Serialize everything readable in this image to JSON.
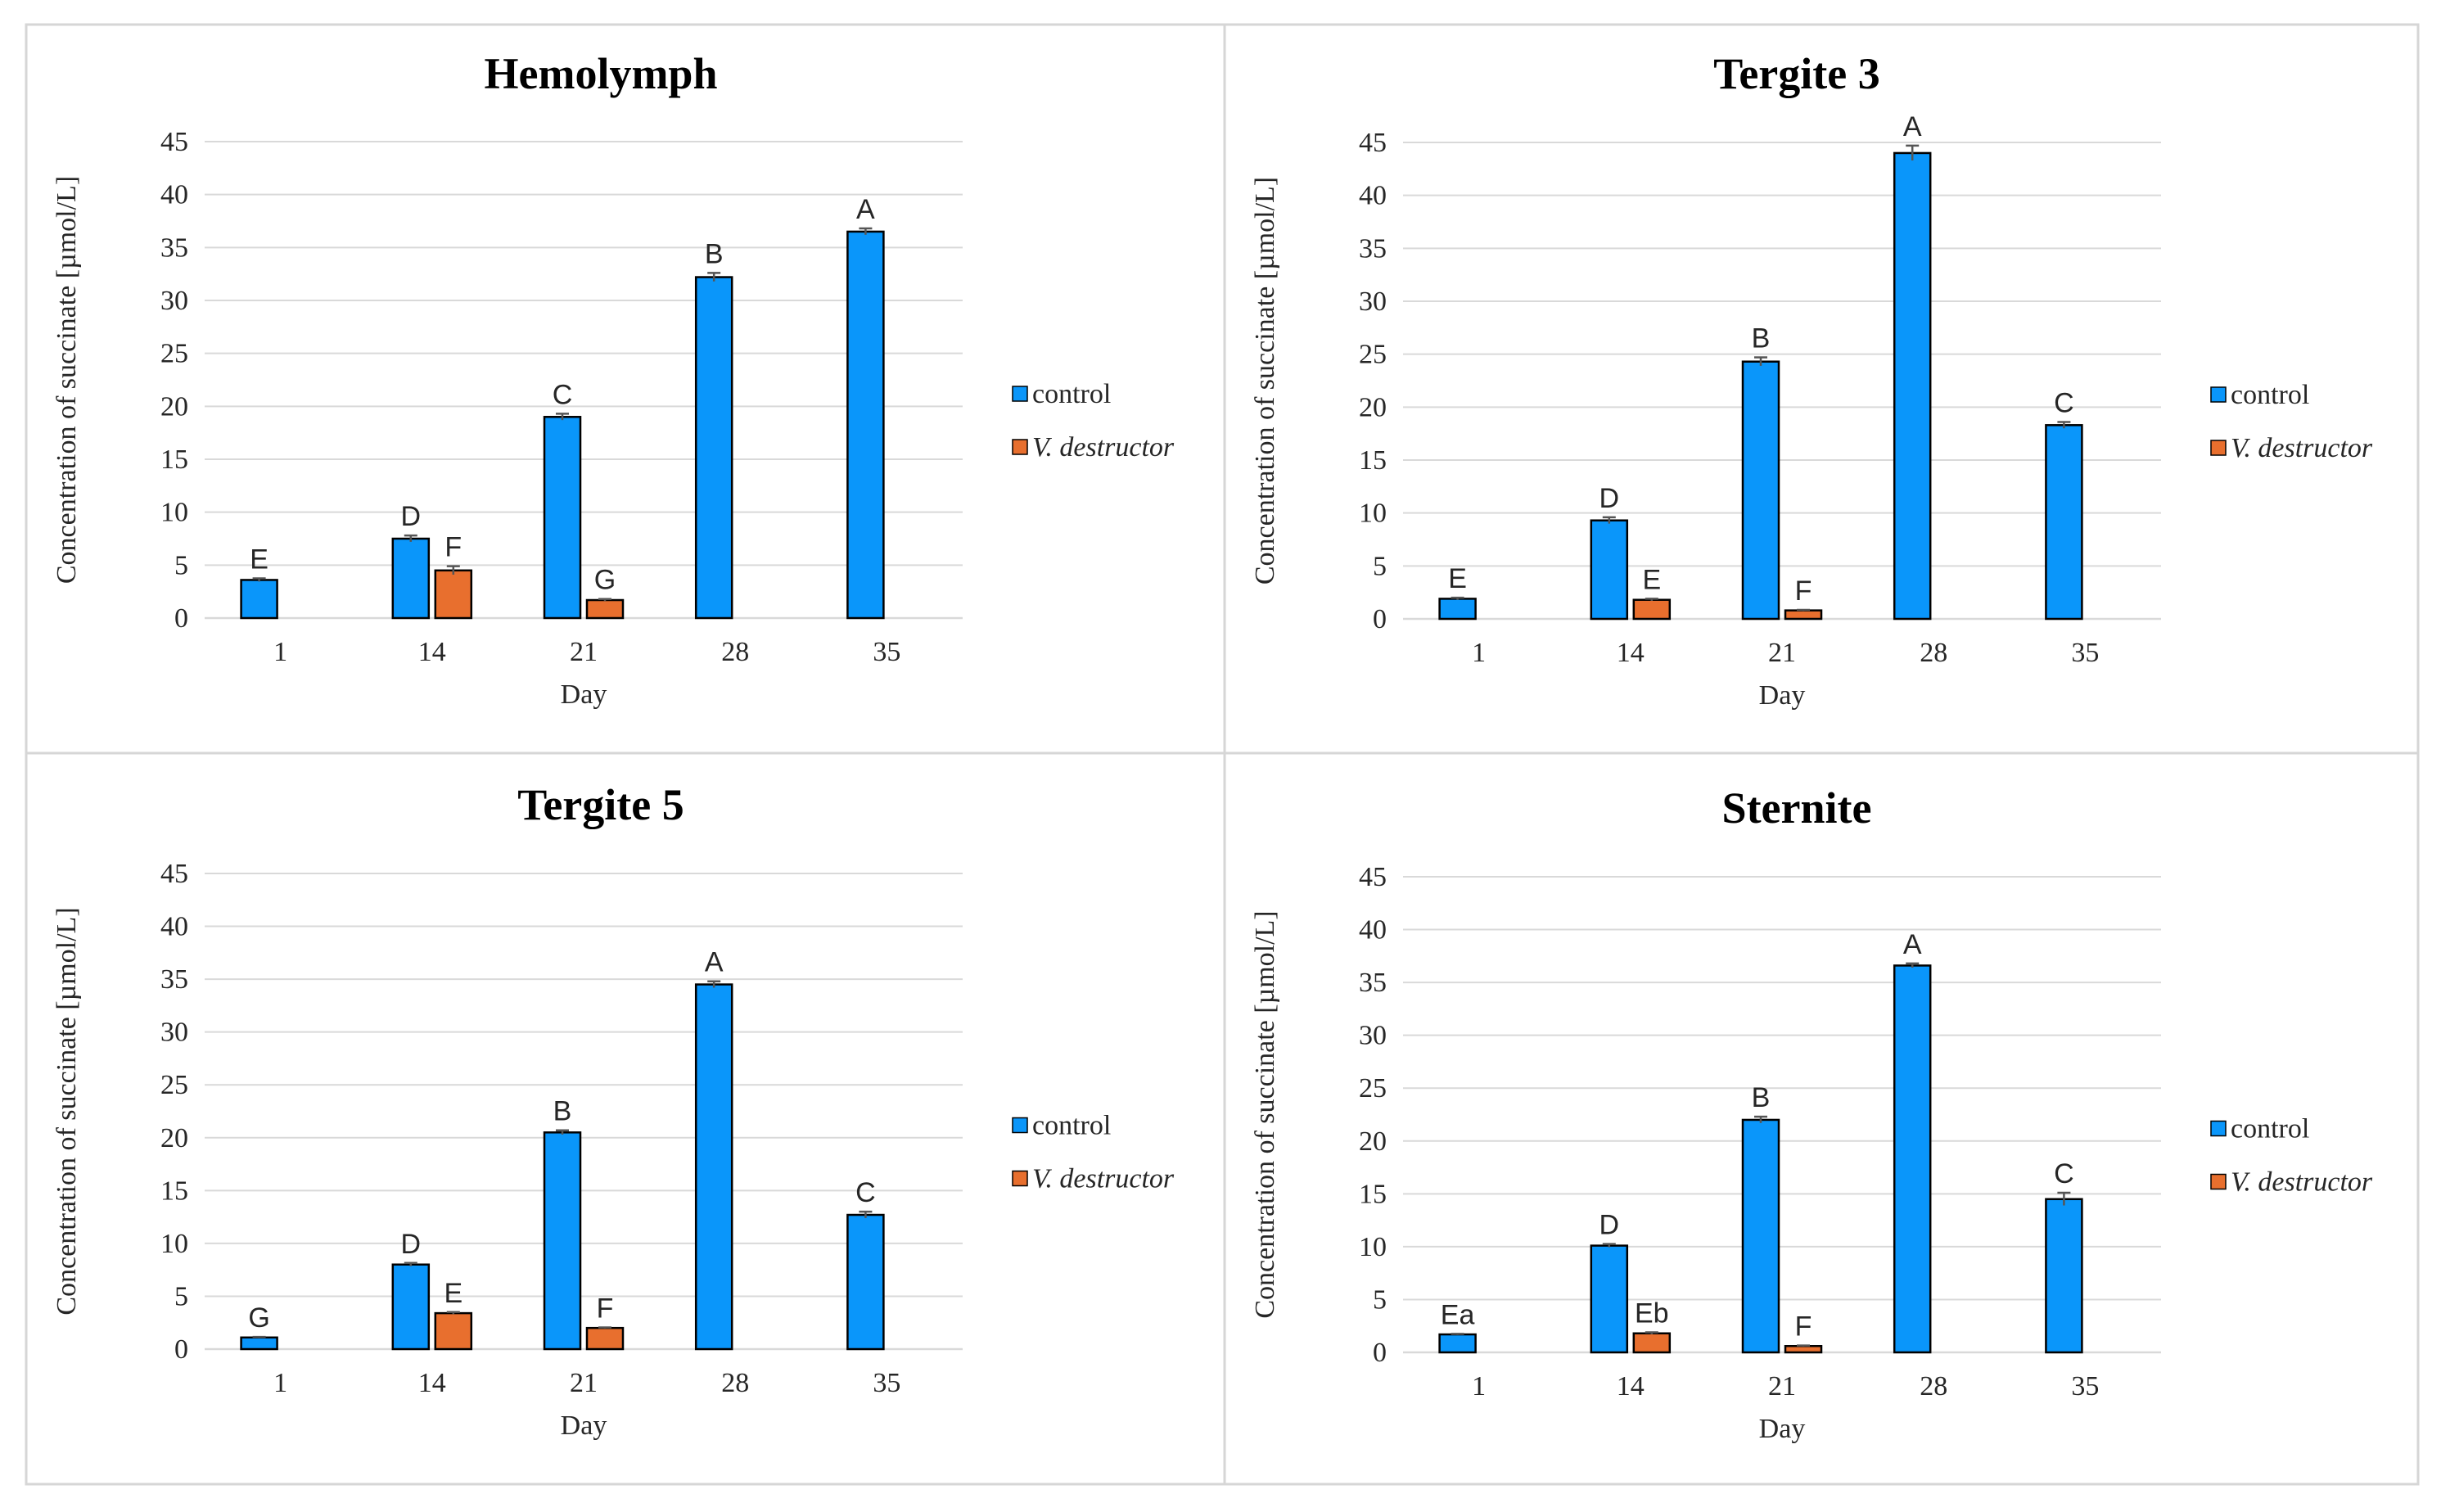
{
  "colors": {
    "control": "#0a96fa",
    "v_destructor": "#e86f2e"
  },
  "chart_data": [
    {
      "type": "bar",
      "title": "Hemolymph",
      "xlabel": "Day",
      "ylabel": "Concentration of  succinate [µmol/L]",
      "ylim": [
        0,
        45
      ],
      "yticks": [
        "0",
        "5",
        "10",
        "15",
        "20",
        "25",
        "30",
        "35",
        "40",
        "45"
      ],
      "categories": [
        "1",
        "14",
        "21",
        "28",
        "35"
      ],
      "legend": [
        "control",
        "V. destructor"
      ],
      "series": [
        {
          "name": "control",
          "values": [
            3.6,
            7.5,
            19.0,
            32.2,
            36.5
          ],
          "errors": [
            0.15,
            0.3,
            0.3,
            0.4,
            0.3
          ],
          "labels": [
            "E",
            "D",
            "C",
            "B",
            "A"
          ]
        },
        {
          "name": "V. destructor",
          "values": [
            null,
            4.5,
            1.7,
            null,
            null
          ],
          "errors": [
            null,
            0.4,
            0.1,
            null,
            null
          ],
          "labels": [
            null,
            "F",
            "G",
            null,
            null
          ]
        }
      ]
    },
    {
      "type": "bar",
      "title": "Tergite 3",
      "xlabel": "Day",
      "ylabel": "Concentration of  succinate [µmol/L]",
      "ylim": [
        0,
        45
      ],
      "yticks": [
        "0",
        "5",
        "10",
        "15",
        "20",
        "25",
        "30",
        "35",
        "40",
        "45"
      ],
      "categories": [
        "1",
        "14",
        "21",
        "28",
        "35"
      ],
      "legend": [
        "control",
        "V. destructor"
      ],
      "series": [
        {
          "name": "control",
          "values": [
            1.9,
            9.3,
            24.3,
            44.0,
            18.3
          ],
          "errors": [
            0.1,
            0.3,
            0.4,
            0.7,
            0.3
          ],
          "labels": [
            "E",
            "D",
            "B",
            "A",
            "C"
          ]
        },
        {
          "name": "V. destructor",
          "values": [
            null,
            1.8,
            0.8,
            null,
            null
          ],
          "errors": [
            null,
            0.1,
            0.05,
            null,
            null
          ],
          "labels": [
            null,
            "E",
            "F",
            null,
            null
          ]
        }
      ]
    },
    {
      "type": "bar",
      "title": "Tergite 5",
      "xlabel": "Day",
      "ylabel": "Concentration of  succinate [µmol/L]",
      "ylim": [
        0,
        45
      ],
      "yticks": [
        "0",
        "5",
        "10",
        "15",
        "20",
        "25",
        "30",
        "35",
        "40",
        "45"
      ],
      "categories": [
        "1",
        "14",
        "21",
        "28",
        "35"
      ],
      "legend": [
        "control",
        "V. destructor"
      ],
      "series": [
        {
          "name": "control",
          "values": [
            1.1,
            8.0,
            20.5,
            34.5,
            12.7
          ],
          "errors": [
            0.05,
            0.15,
            0.2,
            0.3,
            0.3
          ],
          "labels": [
            "G",
            "D",
            "B",
            "A",
            "C"
          ]
        },
        {
          "name": "V. destructor",
          "values": [
            null,
            3.4,
            2.0,
            null,
            null
          ],
          "errors": [
            null,
            0.1,
            0.05,
            null,
            null
          ],
          "labels": [
            null,
            "E",
            "F",
            null,
            null
          ]
        }
      ]
    },
    {
      "type": "bar",
      "title": "Sternite",
      "xlabel": "Day",
      "ylabel": "Concentration of  succinate [µmol/L]",
      "ylim": [
        0,
        45
      ],
      "yticks": [
        "0",
        "5",
        "10",
        "15",
        "20",
        "25",
        "30",
        "35",
        "40",
        "45"
      ],
      "categories": [
        "1",
        "14",
        "21",
        "28",
        "35"
      ],
      "legend": [
        "control",
        "V. destructor"
      ],
      "series": [
        {
          "name": "control",
          "values": [
            1.7,
            10.1,
            22.0,
            36.6,
            14.5
          ],
          "errors": [
            0.05,
            0.15,
            0.3,
            0.2,
            0.6
          ],
          "labels": [
            "Ea",
            "D",
            "B",
            "A",
            "C"
          ]
        },
        {
          "name": "V. destructor",
          "values": [
            null,
            1.8,
            0.6,
            null,
            null
          ],
          "errors": [
            null,
            0.1,
            0.05,
            null,
            null
          ],
          "labels": [
            null,
            "Eb",
            "F",
            null,
            null
          ]
        }
      ]
    }
  ]
}
